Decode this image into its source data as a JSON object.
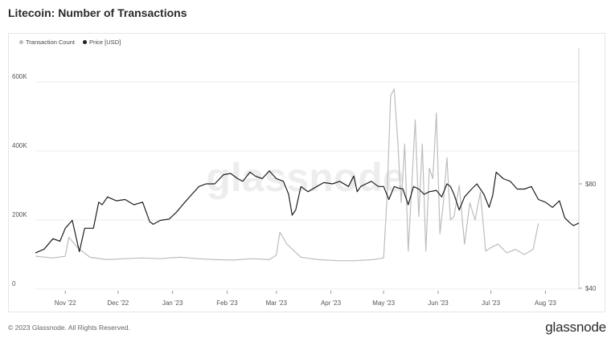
{
  "title": "Litecoin: Number of Transactions",
  "footer": {
    "copyright": "© 2023 Glassnode. All Rights Reserved.",
    "brand": "glassnode"
  },
  "watermark": "glassnode",
  "colors": {
    "transactions": "#bdbdbd",
    "price": "#1f1f1f",
    "grid": "#ececec"
  },
  "chart_data": {
    "type": "line",
    "title": "Litecoin: Number of Transactions",
    "legend": {
      "placement": "top-left",
      "entries": [
        "Transaction Count",
        "Price [USD]"
      ]
    },
    "x_ticks": [
      "Nov '22",
      "Dec '22",
      "Jan '23",
      "Feb '23",
      "Mar '23",
      "Apr '23",
      "May '23",
      "Jun '23",
      "Jul '23",
      "Aug '23"
    ],
    "x_range": [
      "2022-10-15",
      "2023-08-20"
    ],
    "y_left": {
      "ticks": [
        "0",
        "200K",
        "400K",
        "600K"
      ],
      "range": [
        0,
        600000
      ]
    },
    "y_right": {
      "ticks": [
        "$40",
        "$80"
      ],
      "range_reference": [
        40,
        80
      ]
    },
    "grid": true,
    "series": [
      {
        "name": "Transaction Count",
        "axis": "left",
        "x": [
          "2022-10-15",
          "2022-10-25",
          "2022-11-01",
          "2022-11-03",
          "2022-11-08",
          "2022-11-15",
          "2022-11-25",
          "2022-12-05",
          "2022-12-15",
          "2022-12-25",
          "2023-01-05",
          "2023-01-15",
          "2023-01-25",
          "2023-02-05",
          "2023-02-15",
          "2023-02-25",
          "2023-03-01",
          "2023-03-03",
          "2023-03-07",
          "2023-03-15",
          "2023-03-25",
          "2023-04-05",
          "2023-04-15",
          "2023-04-25",
          "2023-05-01",
          "2023-05-03",
          "2023-05-05",
          "2023-05-07",
          "2023-05-09",
          "2023-05-11",
          "2023-05-13",
          "2023-05-15",
          "2023-05-17",
          "2023-05-19",
          "2023-05-21",
          "2023-05-23",
          "2023-05-25",
          "2023-05-27",
          "2023-05-29",
          "2023-05-31",
          "2023-06-02",
          "2023-06-04",
          "2023-06-06",
          "2023-06-08",
          "2023-06-10",
          "2023-06-13",
          "2023-06-16",
          "2023-06-19",
          "2023-06-22",
          "2023-06-25",
          "2023-06-28",
          "2023-07-01",
          "2023-07-05",
          "2023-07-10",
          "2023-07-15",
          "2023-07-20",
          "2023-07-25",
          "2023-07-28"
        ],
        "values": [
          95000,
          90000,
          95000,
          150000,
          120000,
          92000,
          85000,
          88000,
          90000,
          88000,
          92000,
          88000,
          85000,
          84000,
          88000,
          85000,
          98000,
          165000,
          130000,
          92000,
          85000,
          82000,
          82000,
          85000,
          90000,
          270000,
          560000,
          580000,
          430000,
          250000,
          420000,
          110000,
          300000,
          490000,
          210000,
          420000,
          110000,
          350000,
          320000,
          510000,
          160000,
          250000,
          380000,
          200000,
          210000,
          300000,
          130000,
          250000,
          200000,
          280000,
          110000,
          120000,
          130000,
          105000,
          115000,
          100000,
          115000,
          190000
        ]
      },
      {
        "name": "Price [USD]",
        "axis": "right",
        "x": [
          "2022-10-15",
          "2022-10-20",
          "2022-10-25",
          "2022-10-29",
          "2022-11-01",
          "2022-11-05",
          "2022-11-07",
          "2022-11-09",
          "2022-11-12",
          "2022-11-17",
          "2022-11-20",
          "2022-11-22",
          "2022-11-25",
          "2022-11-30",
          "2022-12-05",
          "2022-12-10",
          "2022-12-15",
          "2022-12-19",
          "2022-12-21",
          "2022-12-25",
          "2022-12-30",
          "2023-01-03",
          "2023-01-08",
          "2023-01-12",
          "2023-01-16",
          "2023-01-20",
          "2023-01-25",
          "2023-01-30",
          "2023-02-03",
          "2023-02-07",
          "2023-02-10",
          "2023-02-14",
          "2023-02-17",
          "2023-02-21",
          "2023-02-25",
          "2023-03-01",
          "2023-03-05",
          "2023-03-08",
          "2023-03-10",
          "2023-03-12",
          "2023-03-15",
          "2023-03-19",
          "2023-03-24",
          "2023-03-28",
          "2023-04-02",
          "2023-04-06",
          "2023-04-11",
          "2023-04-14",
          "2023-04-16",
          "2023-04-18",
          "2023-04-21",
          "2023-04-24",
          "2023-04-28",
          "2023-05-01",
          "2023-05-04",
          "2023-05-07",
          "2023-05-09",
          "2023-05-12",
          "2023-05-15",
          "2023-05-18",
          "2023-05-21",
          "2023-05-24",
          "2023-05-27",
          "2023-05-31",
          "2023-06-03",
          "2023-06-06",
          "2023-06-08",
          "2023-06-10",
          "2023-06-13",
          "2023-06-16",
          "2023-06-20",
          "2023-06-23",
          "2023-06-27",
          "2023-06-30",
          "2023-07-02",
          "2023-07-04",
          "2023-07-08",
          "2023-07-12",
          "2023-07-16",
          "2023-07-20",
          "2023-07-24",
          "2023-07-28",
          "2023-08-01",
          "2023-08-05",
          "2023-08-09",
          "2023-08-12",
          "2023-08-15",
          "2023-08-17",
          "2023-08-20"
        ],
        "values": [
          53.5,
          55,
          59,
          58,
          63,
          66,
          60,
          54,
          63,
          63,
          73,
          72,
          75,
          73.5,
          74,
          72,
          73,
          65.5,
          64.5,
          66,
          66.5,
          69,
          73,
          76,
          79,
          80,
          80,
          83.5,
          84,
          82,
          81,
          84.5,
          83,
          82,
          85,
          82,
          81,
          76,
          68,
          70,
          79,
          77,
          79,
          80.5,
          80,
          81,
          79,
          83,
          77,
          79,
          80,
          81,
          79,
          79,
          74,
          79,
          78.5,
          78,
          72,
          79,
          78,
          76,
          77,
          77.5,
          75,
          80,
          79,
          76,
          70,
          75,
          78,
          80,
          76,
          71,
          75.5,
          84.5,
          82,
          81,
          78,
          78,
          79,
          74,
          73,
          71,
          73.5,
          67,
          65,
          64,
          65
        ]
      }
    ]
  }
}
